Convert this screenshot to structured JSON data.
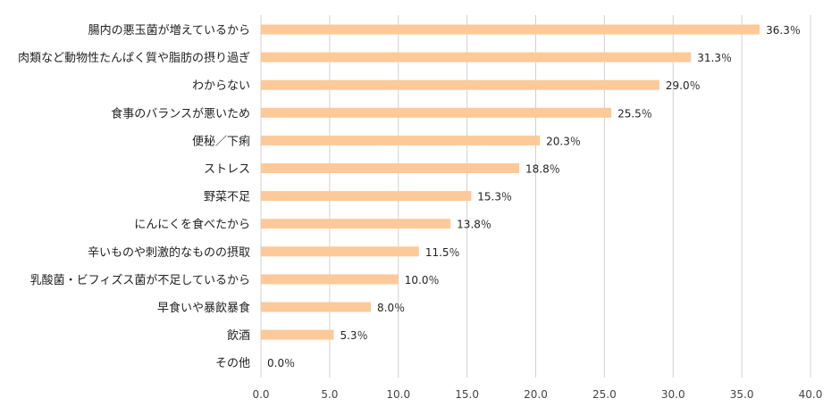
{
  "chart_data": {
    "type": "bar",
    "orientation": "horizontal",
    "categories": [
      "腸内の悪玉菌が増えているから",
      "肉類など動物性たんぱく質や脂肪の摂り過ぎ",
      "わからない",
      "食事のバランスが悪いため",
      "便秘／下痢",
      "ストレス",
      "野菜不足",
      "にんにくを食べたから",
      "辛いものや刺激的なものの摂取",
      "乳酸菌・ビフィズス菌が不足しているから",
      "早食いや暴飲暴食",
      "飲酒",
      "その他"
    ],
    "values": [
      36.3,
      31.3,
      29.0,
      25.5,
      20.3,
      18.8,
      15.3,
      13.8,
      11.5,
      10.0,
      8.0,
      5.3,
      0.0
    ],
    "data_labels": [
      "36.3％",
      "31.3％",
      "29.0％",
      "25.5％",
      "20.3％",
      "18.8％",
      "15.3％",
      "13.8％",
      "11.5％",
      "10.0％",
      "8.0％",
      "5.3％",
      "0.0％"
    ],
    "xlim": [
      0,
      40
    ],
    "x_ticks": [
      0,
      5,
      10,
      15,
      20,
      25,
      30,
      35,
      40
    ],
    "x_tick_labels": [
      "0.0",
      "5.0",
      "10.0",
      "15.0",
      "20.0",
      "25.0",
      "30.0",
      "35.0",
      "40.0"
    ],
    "title": "",
    "xlabel": "",
    "ylabel": "",
    "grid": "vertical",
    "legend": "none",
    "colors": {
      "bar": "#fdc998",
      "grid": "#d0d0d0",
      "text": "#222222"
    }
  }
}
